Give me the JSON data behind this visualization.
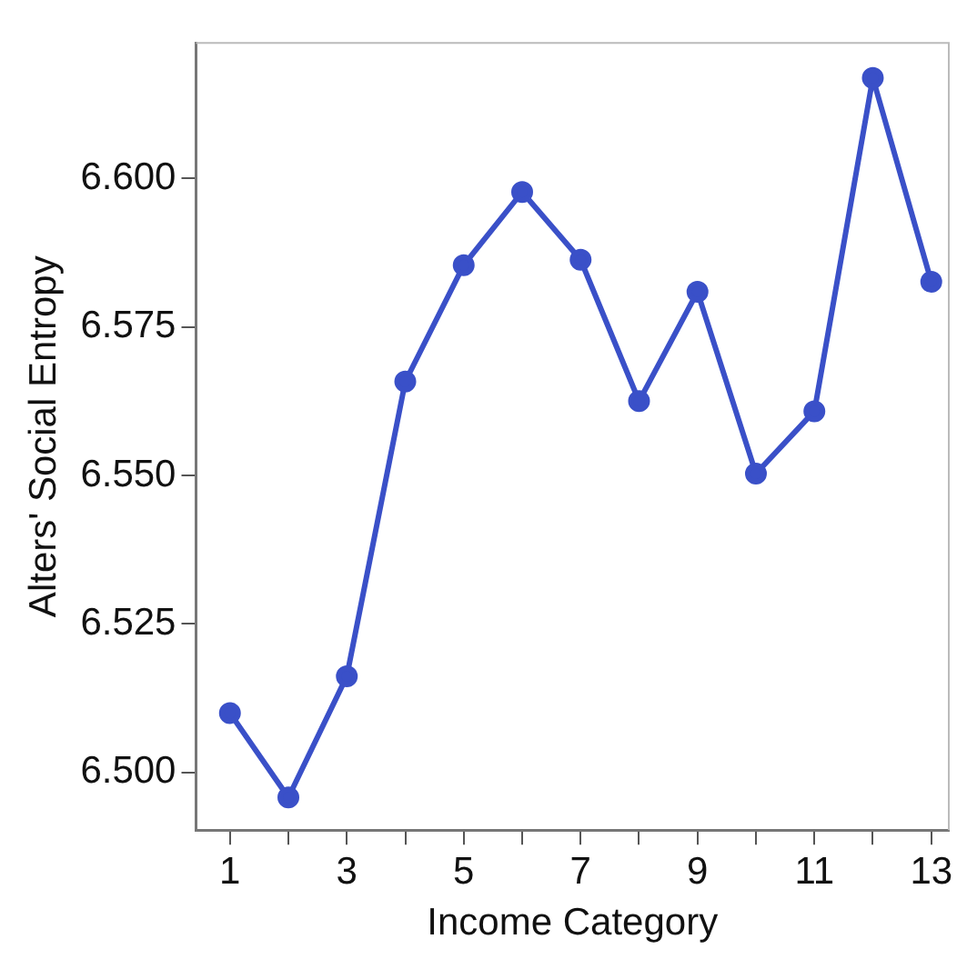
{
  "chart_data": {
    "type": "line",
    "xlabel": "Income Category",
    "ylabel": "Alters' Social Entropy",
    "x": [
      1,
      2,
      3,
      4,
      5,
      6,
      7,
      8,
      9,
      10,
      11,
      12,
      13
    ],
    "series": [
      {
        "color": "#3a50c8",
        "values": [
          6.51,
          6.4958,
          6.5162,
          6.5658,
          6.5854,
          6.5977,
          6.5863,
          6.5625,
          6.5809,
          6.5503,
          6.5608,
          6.6169,
          6.5826
        ]
      }
    ],
    "xlim": [
      0.42,
      13.3
    ],
    "ylim": [
      6.4903,
      6.6228
    ],
    "xticks": [
      1,
      {
        "value": 2,
        "label": null
      },
      3,
      {
        "value": 4,
        "label": null
      },
      5,
      {
        "value": 6,
        "label": null
      },
      7,
      {
        "value": 8,
        "label": null
      },
      9,
      {
        "value": 10,
        "label": null
      },
      11,
      {
        "value": 12,
        "label": null
      },
      13
    ],
    "yticks": [
      {
        "value": 6.5,
        "label": "6.500"
      },
      {
        "value": 6.525,
        "label": "6.525"
      },
      {
        "value": 6.55,
        "label": "6.550"
      },
      {
        "value": 6.575,
        "label": "6.575"
      },
      {
        "value": 6.6,
        "label": "6.600"
      }
    ],
    "grid": false,
    "legend": false,
    "marker": "circle",
    "line_style": "solid"
  }
}
